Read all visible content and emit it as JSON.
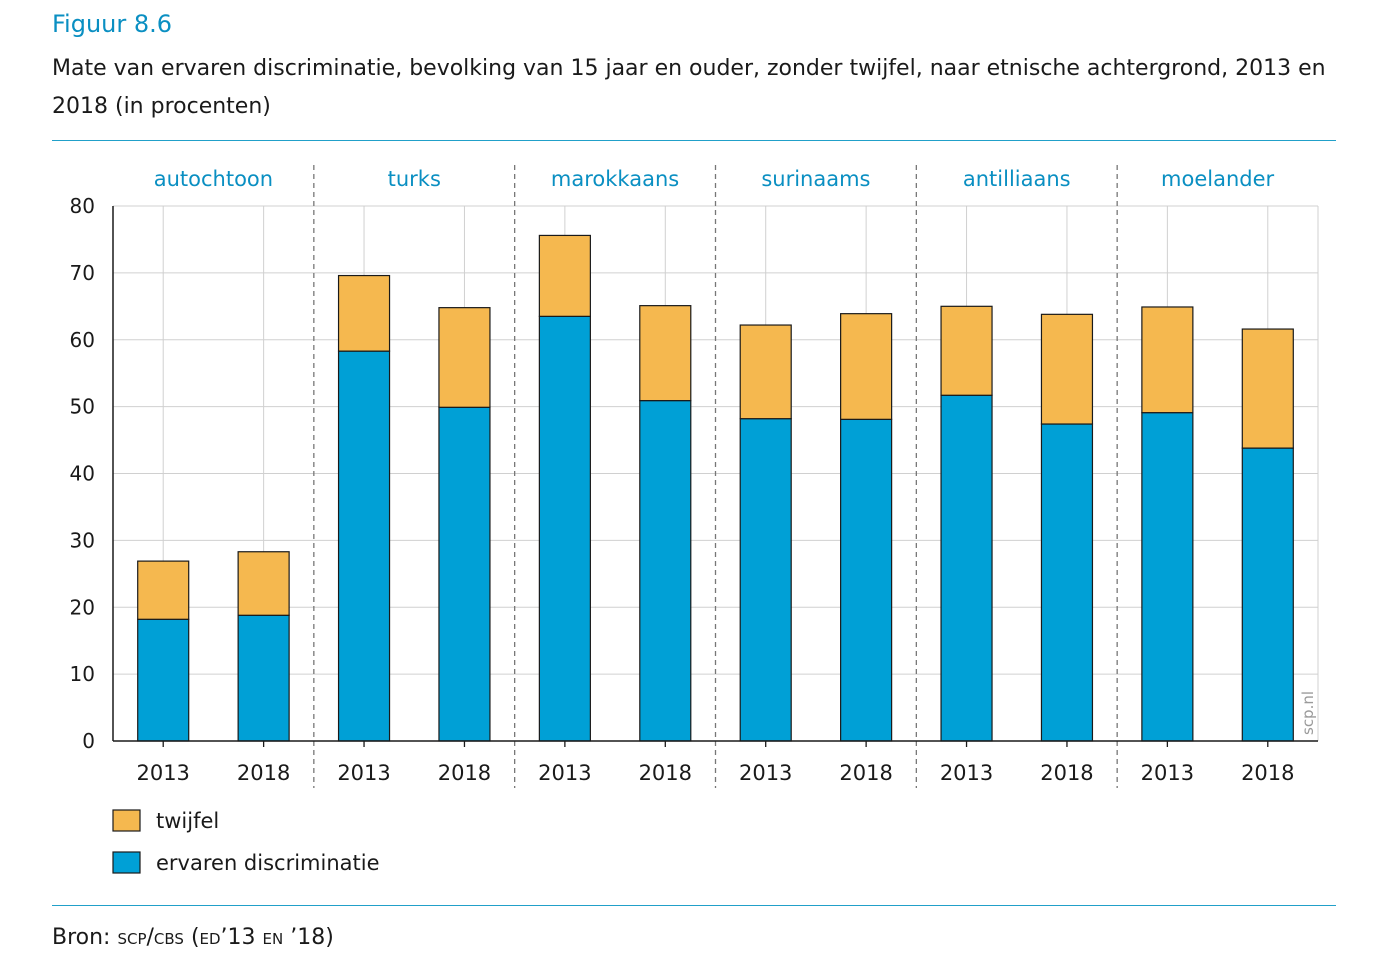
{
  "figure": {
    "label": "Figuur 8.6",
    "title": "Mate van ervaren discriminatie, bevolking van 15 jaar en ouder, zonder twijfel, naar etnische achtergrond, 2013 en 2018 (in procenten)",
    "source_prefix": "Bron: ",
    "source_org": "scp/cbs",
    "source_detail": " (ed’13 en ’18)",
    "watermark": "scp.nl"
  },
  "colors": {
    "ervaren": "#00a0d6",
    "twijfel": "#f5b84f",
    "accent": "#0a8fc2",
    "rule": "#21a0c9"
  },
  "chart_data": {
    "type": "bar",
    "stacked": true,
    "groups": [
      "autochtoon",
      "turks",
      "marokkaans",
      "surinaams",
      "antilliaans",
      "moelander"
    ],
    "years": [
      "2013",
      "2018"
    ],
    "categories": [
      "2013",
      "2018",
      "2013",
      "2018",
      "2013",
      "2018",
      "2013",
      "2018",
      "2013",
      "2018",
      "2013",
      "2018"
    ],
    "series": [
      {
        "name": "ervaren discriminatie",
        "color": "#00a0d6",
        "values": [
          18.2,
          18.8,
          58.3,
          49.9,
          63.5,
          50.9,
          48.2,
          48.1,
          51.7,
          47.4,
          49.1,
          43.8
        ]
      },
      {
        "name": "twijfel",
        "color": "#f5b84f",
        "values": [
          8.7,
          9.5,
          11.3,
          14.9,
          12.1,
          14.2,
          14.0,
          15.8,
          13.3,
          16.4,
          15.8,
          17.8
        ]
      }
    ],
    "legend": [
      "twijfel",
      "ervaren discriminatie"
    ],
    "legend_position": "bottom-left",
    "ylim": [
      0,
      80
    ],
    "yticks": [
      0,
      10,
      20,
      30,
      40,
      50,
      60,
      70,
      80
    ],
    "grid": true
  }
}
